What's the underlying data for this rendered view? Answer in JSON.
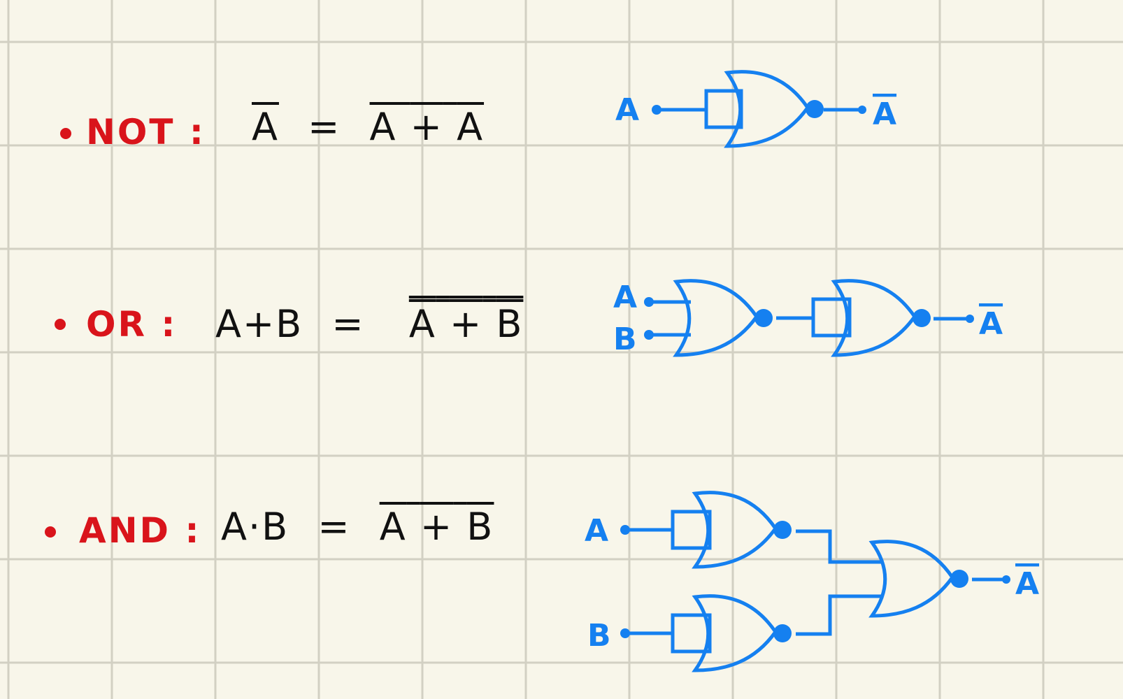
{
  "colors": {
    "paper": "#f8f6ea",
    "grid": "#d2d0c3",
    "label": "#d9141b",
    "ink": "#111111",
    "circuit": "#1580f0"
  },
  "rows": [
    {
      "label": "NOT :",
      "lhs": "A",
      "eq": "=",
      "rhs_a": "A",
      "rhs_op": "+",
      "rhs_b": "A"
    },
    {
      "label": "OR :",
      "lhs": "A+B",
      "eq": "=",
      "rhs_a": "A",
      "rhs_op": "+",
      "rhs_b": "B"
    },
    {
      "label": "AND :",
      "lhs": "A·B",
      "eq": "=",
      "rhs_a": "A",
      "rhs_op": "+",
      "rhs_b": "B"
    }
  ],
  "circuits": {
    "not": {
      "in_a": "A",
      "out": "A"
    },
    "or": {
      "in_a": "A",
      "in_b": "B",
      "out": "A"
    },
    "and": {
      "in_a": "A",
      "in_b": "B",
      "out": "A"
    }
  }
}
